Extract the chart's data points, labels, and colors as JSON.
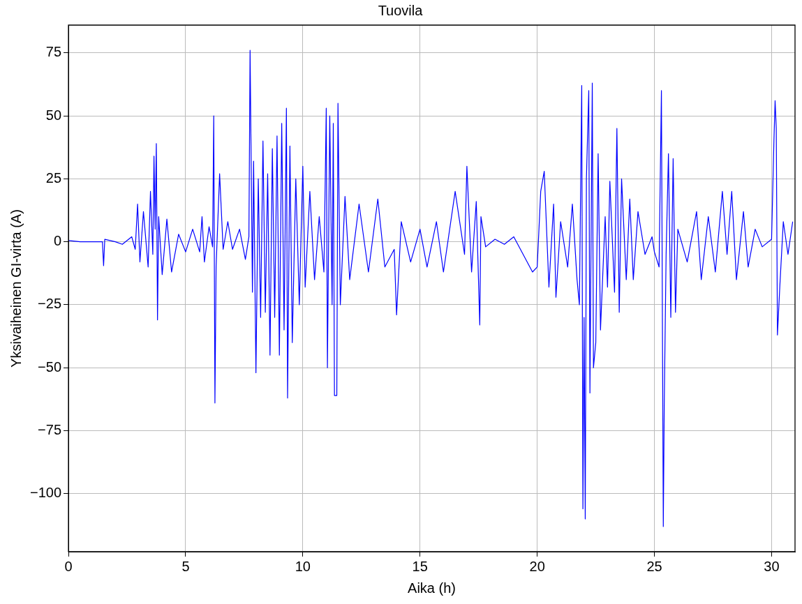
{
  "chart_data": {
    "type": "line",
    "title": "Tuovila",
    "xlabel": "Aika (h)",
    "ylabel": "Yksivaiheinen GI-virta (A)",
    "xlim": [
      0,
      31
    ],
    "xticks": [
      0,
      5,
      10,
      15,
      20,
      25,
      30
    ],
    "ylim": [
      -123,
      86
    ],
    "yticks": [
      -100,
      -75,
      -50,
      -25,
      0,
      25,
      50,
      75
    ],
    "grid": true,
    "marker": "none",
    "line_style": "solid",
    "series": [
      {
        "color": "#0000ff",
        "x": [
          0,
          0.5,
          1.0,
          1.45,
          1.5,
          1.55,
          2.0,
          2.3,
          2.7,
          2.85,
          2.95,
          3.05,
          3.2,
          3.4,
          3.5,
          3.6,
          3.65,
          3.7,
          3.75,
          3.8,
          3.85,
          4.0,
          4.2,
          4.4,
          4.7,
          5.0,
          5.3,
          5.6,
          5.7,
          5.8,
          6.0,
          6.15,
          6.2,
          6.25,
          6.3,
          6.45,
          6.6,
          6.8,
          7.0,
          7.3,
          7.55,
          7.7,
          7.75,
          7.85,
          7.9,
          8.0,
          8.1,
          8.2,
          8.3,
          8.4,
          8.5,
          8.6,
          8.7,
          8.8,
          8.9,
          9.0,
          9.1,
          9.2,
          9.3,
          9.35,
          9.45,
          9.55,
          9.7,
          9.85,
          10.0,
          10.1,
          10.3,
          10.5,
          10.7,
          10.9,
          11.0,
          11.05,
          11.15,
          11.25,
          11.3,
          11.35,
          11.45,
          11.5,
          11.6,
          11.8,
          12.0,
          12.4,
          12.8,
          13.2,
          13.5,
          13.9,
          14.0,
          14.2,
          14.6,
          15.0,
          15.3,
          15.7,
          16.0,
          16.5,
          16.9,
          17.0,
          17.2,
          17.4,
          17.55,
          17.6,
          17.8,
          18.2,
          18.6,
          19.0,
          19.4,
          19.8,
          20.0,
          20.15,
          20.3,
          20.5,
          20.7,
          20.8,
          21.0,
          21.3,
          21.5,
          21.7,
          21.8,
          21.9,
          21.95,
          22.0,
          22.05,
          22.1,
          22.2,
          22.25,
          22.35,
          22.4,
          22.5,
          22.6,
          22.7,
          22.9,
          23.0,
          23.1,
          23.3,
          23.4,
          23.5,
          23.6,
          23.8,
          23.95,
          24.1,
          24.3,
          24.6,
          24.9,
          25.0,
          25.2,
          25.3,
          25.38,
          25.42,
          25.5,
          25.6,
          25.7,
          25.8,
          25.9,
          26.0,
          26.4,
          26.8,
          27.0,
          27.3,
          27.6,
          27.9,
          28.1,
          28.3,
          28.5,
          28.8,
          29.0,
          29.3,
          29.6,
          30.0,
          30.1,
          30.15,
          30.2,
          30.25,
          30.35,
          30.5,
          30.7,
          30.9
        ],
        "values": [
          0.5,
          0,
          0,
          0,
          -9.5,
          1,
          0,
          -1,
          2,
          -3,
          15,
          -8,
          12,
          -10,
          20,
          -5,
          34,
          5,
          39,
          -31,
          10,
          -13,
          9,
          -12,
          3,
          -4,
          5,
          -4,
          10,
          -8,
          6,
          -2,
          50,
          -64,
          -10,
          27,
          -3,
          8,
          -3,
          5,
          -7,
          2,
          76,
          -20,
          32,
          -52,
          25,
          -30,
          40,
          -28,
          27,
          -45,
          37,
          -30,
          42,
          -45,
          47,
          -35,
          53,
          -62,
          38,
          -40,
          25,
          -25,
          30,
          -18,
          20,
          -15,
          10,
          -12,
          53,
          -50,
          50,
          -25,
          47,
          -61,
          -61,
          55,
          -25,
          18,
          -15,
          15,
          -12,
          17,
          -10,
          -3,
          -29,
          8,
          -8,
          5,
          -10,
          8,
          -12,
          20,
          -5,
          30,
          -12,
          16,
          -33,
          10,
          -2,
          1,
          -1,
          2,
          -5,
          -12,
          -10,
          20,
          28,
          -18,
          15,
          -22,
          8,
          -10,
          15,
          -15,
          -25,
          62,
          -106,
          -30,
          -110,
          25,
          60,
          -60,
          63,
          -50,
          -40,
          35,
          -35,
          10,
          -18,
          24,
          -20,
          45,
          -28,
          25,
          -15,
          17,
          -15,
          12,
          -5,
          2,
          -4,
          -10,
          60,
          -113,
          -65,
          -5,
          35,
          -30,
          33,
          -28,
          5,
          -8,
          12,
          -15,
          10,
          -12,
          20,
          -5,
          20,
          -15,
          12,
          -10,
          5,
          -2,
          1,
          40,
          56,
          45,
          -37,
          -18,
          8,
          -5,
          8
        ]
      }
    ]
  }
}
